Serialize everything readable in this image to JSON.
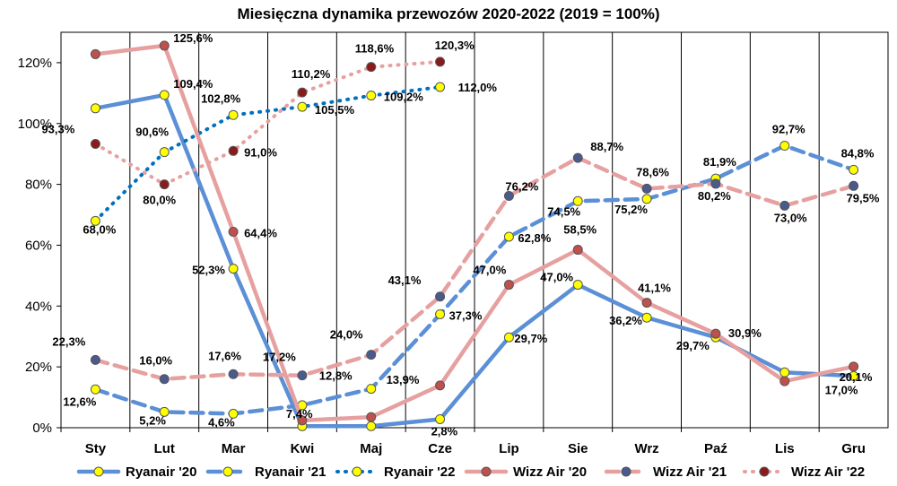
{
  "chart_data": {
    "type": "line",
    "title": "Miesięczna dynamika przewozów 2020-2022 (2019 = 100%)",
    "categories": [
      "Sty",
      "Lut",
      "Mar",
      "Kwi",
      "Maj",
      "Cze",
      "Lip",
      "Sie",
      "Wrz",
      "Paź",
      "Lis",
      "Gru"
    ],
    "ylim": [
      0,
      130
    ],
    "yticks": [
      "0%",
      "20%",
      "40%",
      "60%",
      "80%",
      "100%",
      "120%"
    ],
    "grid": "vertical",
    "legend_position": "bottom",
    "series": [
      {
        "name": "Ryanair '20",
        "color": "#5b8fd6",
        "marker": "#ffff00",
        "style": "solid",
        "label": false,
        "values": [
          105,
          109.4,
          52.3,
          0.5,
          0.5,
          2.8,
          29.7,
          47.0,
          36.2,
          29.7,
          18.2,
          17.0
        ],
        "labels": [
          null,
          "109,4%",
          "52,3%",
          null,
          null,
          "2,8%",
          "29,7%",
          "47,0%",
          "36,2%",
          "29,7%",
          null,
          "17,0%"
        ]
      },
      {
        "name": "Ryanair '21",
        "color": "#5b8fd6",
        "marker": "#ffff00",
        "style": "dashed",
        "values": [
          12.6,
          5.2,
          4.6,
          7.4,
          12.8,
          37.3,
          62.8,
          74.5,
          75.2,
          81.9,
          92.7,
          84.8
        ],
        "labels": [
          "12,6%",
          "5,2%",
          "4,6%",
          "7,4%",
          "12,8%",
          "37,3%",
          "62,8%",
          "74,5%",
          "75,2%",
          "81,9%",
          "92,7%",
          "84,8%"
        ]
      },
      {
        "name": "Ryanair '22",
        "color": "#0070c0",
        "marker": "#ffff00",
        "style": "dotted",
        "values": [
          68.0,
          90.6,
          102.8,
          105.5,
          109.2,
          112.0,
          null,
          null,
          null,
          null,
          null,
          null
        ],
        "labels": [
          "68,0%",
          "90,6%",
          "102,8%",
          "105,5%",
          "109,2%",
          "112,0%",
          null,
          null,
          null,
          null,
          null,
          null
        ]
      },
      {
        "name": "Wizz Air '20",
        "color": "#e6a0a0",
        "marker": "#c0504d",
        "style": "solid",
        "values": [
          122.8,
          125.6,
          64.4,
          2.4,
          3.5,
          13.9,
          47.0,
          58.5,
          41.1,
          30.9,
          15.3,
          20.1
        ],
        "labels": [
          null,
          "125,6%",
          "64,4%",
          null,
          null,
          "13,9%",
          "47,0%",
          "58,5%",
          "41,1%",
          "30,9%",
          null,
          "20,1%"
        ]
      },
      {
        "name": "Wizz Air '21",
        "color": "#e6a0a0",
        "marker": "#4a5a8c",
        "style": "dashed",
        "values": [
          22.3,
          16.0,
          17.6,
          17.2,
          24.0,
          43.1,
          76.2,
          88.7,
          78.6,
          80.2,
          73.0,
          79.5
        ],
        "labels": [
          "22,3%",
          "16,0%",
          "17,6%",
          "17,2%",
          "24,0%",
          "43,1%",
          "76,2%",
          "88,7%",
          "78,6%",
          "80,2%",
          "73,0%",
          "79,5%"
        ]
      },
      {
        "name": "Wizz Air '22",
        "color": "#e6a0a0",
        "marker": "#8b1a1a",
        "style": "dotted",
        "values": [
          93.3,
          80.0,
          91.0,
          110.2,
          118.6,
          120.3,
          null,
          null,
          null,
          null,
          null,
          null
        ],
        "labels": [
          "93,3%",
          "80,0%",
          "91,0%",
          "110,2%",
          "118,6%",
          "120,3%",
          null,
          null,
          null,
          null,
          null,
          null
        ]
      }
    ]
  }
}
